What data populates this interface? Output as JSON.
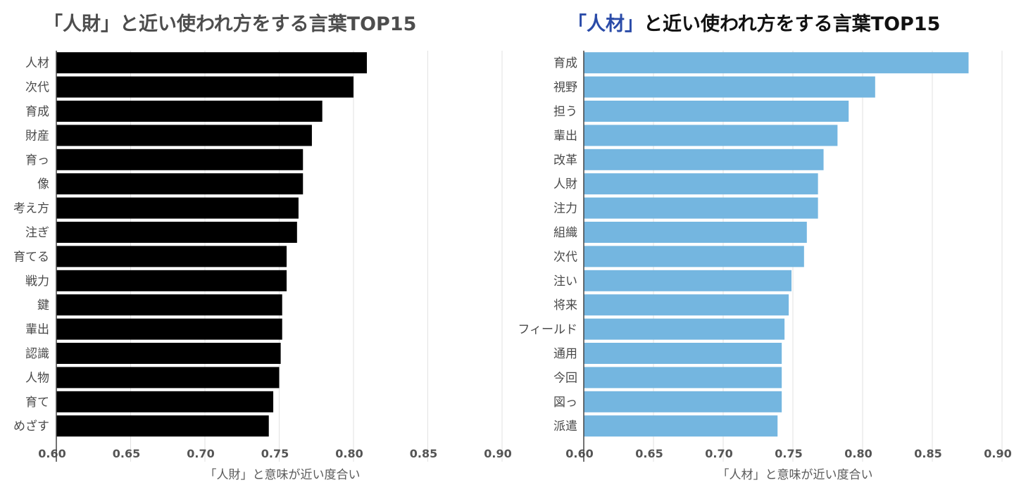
{
  "titles": {
    "left": "「人財」と近い使われ方をする言葉TOP15",
    "right_highlight": "「人材」",
    "right_rest": "と近い使われ方をする言葉TOP15"
  },
  "chart_data": [
    {
      "type": "bar",
      "orientation": "horizontal",
      "title": "「人財」と近い使われ方をする言葉TOP15",
      "xlabel": "「人財」と意味が近い度合い",
      "xlim": [
        0.6,
        0.9
      ],
      "xticks": [
        "0.60",
        "0.65",
        "0.70",
        "0.75",
        "0.80",
        "0.85",
        "0.90"
      ],
      "grid": true,
      "color": "#000000",
      "categories": [
        "人材",
        "次代",
        "育成",
        "財産",
        "育っ",
        "像",
        "考え方",
        "注ぎ",
        "育てる",
        "戦力",
        "鍵",
        "輩出",
        "認識",
        "人物",
        "育て",
        "めざす"
      ],
      "values": [
        0.809,
        0.8,
        0.779,
        0.772,
        0.766,
        0.766,
        0.763,
        0.762,
        0.755,
        0.755,
        0.752,
        0.752,
        0.751,
        0.75,
        0.746,
        0.743
      ]
    },
    {
      "type": "bar",
      "orientation": "horizontal",
      "title": "「人材」と近い使われ方をする言葉TOP15",
      "xlabel": "「人材」と意味が近い度合い",
      "xlim": [
        0.6,
        0.9
      ],
      "xticks": [
        "0.60",
        "0.65",
        "0.70",
        "0.75",
        "0.80",
        "0.85",
        "0.90"
      ],
      "grid": true,
      "color": "#74b6e0",
      "categories": [
        "育成",
        "視野",
        "担う",
        "輩出",
        "改革",
        "人財",
        "注力",
        "組織",
        "次代",
        "注い",
        "将来",
        "フィールド",
        "通用",
        "今回",
        "図っ",
        "派遣"
      ],
      "values": [
        0.876,
        0.809,
        0.79,
        0.782,
        0.772,
        0.768,
        0.768,
        0.76,
        0.758,
        0.749,
        0.747,
        0.744,
        0.742,
        0.742,
        0.742,
        0.739
      ]
    }
  ]
}
